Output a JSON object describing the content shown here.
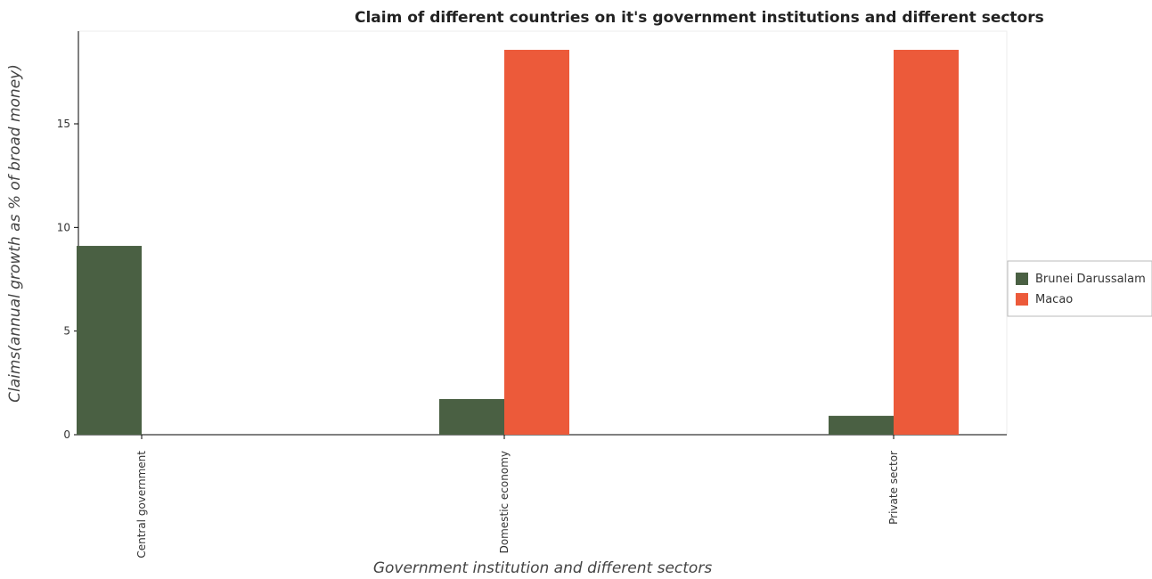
{
  "chart_data": {
    "type": "bar",
    "title": "Claim of different countries on it's government institutions and different sectors",
    "x_label": "Government institution and different sectors",
    "y_label": "Claims(annual growth as % of broad money)",
    "categories": [
      "Central government",
      "Domestic economy",
      "Private sector"
    ],
    "series": [
      {
        "name": "Brunei Darussalam",
        "color": "#4a6043",
        "values": [
          9.11,
          1.72,
          0.91
        ]
      },
      {
        "name": "Macao",
        "color": "#ec5a3a",
        "values": [
          0,
          18.57,
          18.57
        ]
      }
    ],
    "ylim": [
      0,
      19.47
    ],
    "yticks": [
      0,
      5,
      10,
      15
    ],
    "legend": "right"
  }
}
